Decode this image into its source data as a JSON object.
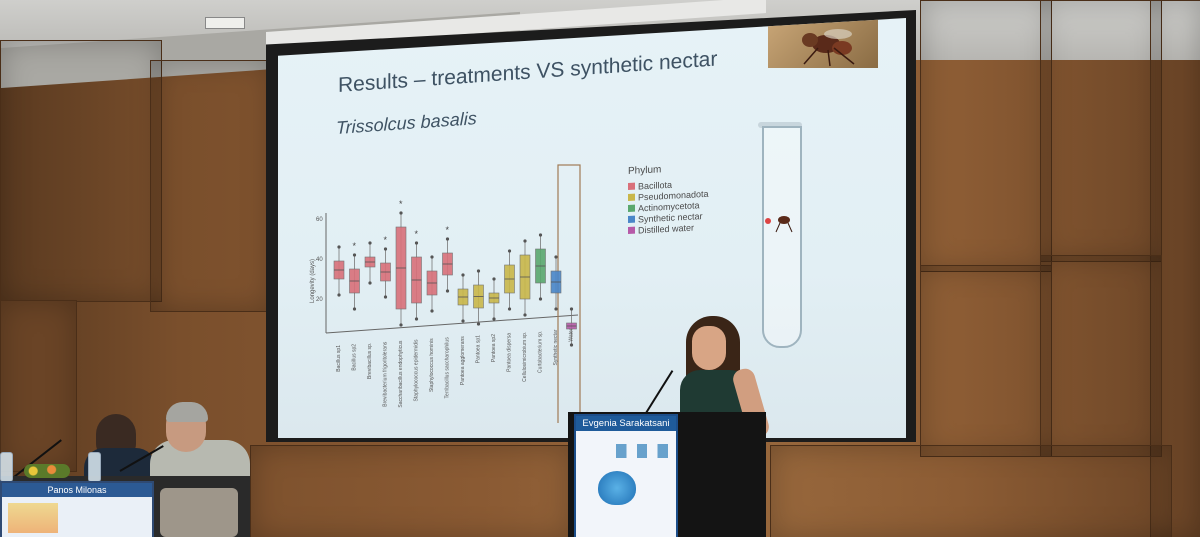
{
  "slide": {
    "title": "Results – treatments VS synthetic nectar",
    "species": "Trissolcus basalis",
    "y_axis_label": "Longevity (days)",
    "y_ticks": [
      "60",
      "40",
      "20"
    ],
    "significance_marker": "*",
    "legend": {
      "title": "Phylum",
      "items": [
        {
          "label": "Bacillota",
          "color": "#d9707a"
        },
        {
          "label": "Pseudomonadota",
          "color": "#c9b74a"
        },
        {
          "label": "Actinomycetota",
          "color": "#5aa86e"
        },
        {
          "label": "Synthetic nectar",
          "color": "#4a86c8"
        },
        {
          "label": "Distilled water",
          "color": "#b65aa8"
        }
      ]
    },
    "treatments": [
      "Bacillus sp1",
      "Bacillus sp2",
      "Brevibacillus sp.",
      "Brevibacterium frigoritolerans",
      "Saccharibacillus endophyticus",
      "Staphylococcus epidermidis",
      "Staphylococcus hominis",
      "Terribacillus saccharophilus",
      "Pantoea agglomerans",
      "Pantoea sp1",
      "Pantoea sp2",
      "Pantoea dispersa",
      "Cellulosimicrobium sp.",
      "Curtobacterium sp.",
      "Synthetic nectar",
      "Water"
    ]
  },
  "podium": {
    "speaker_name": "Evgenia Sarakatsani"
  },
  "table": {
    "nameplate_name": "Panos Milonas"
  }
}
